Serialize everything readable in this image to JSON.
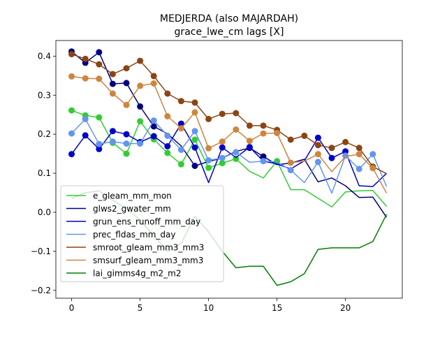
{
  "chart_data": {
    "type": "line",
    "title": "MEDJERDA (also MAJARDAH)",
    "subtitle": "grace_lwe_cm lags [X]",
    "xlabel": "",
    "ylabel": "",
    "xlim": [
      -1.15,
      24.15
    ],
    "ylim": [
      -0.22,
      0.44
    ],
    "xticks": [
      0,
      5,
      10,
      15,
      20
    ],
    "yticks": [
      -0.2,
      -0.1,
      0.0,
      0.1,
      0.2,
      0.3,
      0.4
    ],
    "xtick_labels": [
      "0",
      "5",
      "10",
      "15",
      "20"
    ],
    "ytick_labels": [
      "−0.2",
      "−0.1",
      "0.0",
      "0.1",
      "0.2",
      "0.3",
      "0.4"
    ],
    "grid": false,
    "legend_position": "lower-left",
    "x": [
      0,
      1,
      2,
      3,
      4,
      5,
      6,
      7,
      8,
      9,
      10,
      11,
      12,
      13,
      14,
      15,
      16,
      17,
      18,
      19,
      20,
      21,
      22,
      23
    ],
    "series": [
      {
        "name": "e_gleam_mm_mon",
        "color": "#32cd32",
        "values": [
          0.261,
          0.248,
          0.243,
          0.178,
          0.15,
          0.233,
          0.187,
          0.152,
          0.123,
          0.186,
          0.114,
          0.126,
          0.137,
          0.105,
          0.088,
          0.131,
          0.058,
          0.058,
          0.036,
          0.014,
          0.052,
          0.055,
          0.056,
          0.015
        ],
        "markers": [
          true,
          true,
          true,
          true,
          true,
          true,
          true,
          true,
          true,
          true,
          true,
          true,
          true,
          false,
          false,
          true,
          false,
          false,
          false,
          false,
          false,
          false,
          false,
          false
        ]
      },
      {
        "name": "glws2_gwater_mm",
        "color": "#000080",
        "values": [
          0.412,
          0.383,
          0.41,
          0.329,
          0.331,
          0.271,
          0.22,
          0.201,
          0.17,
          0.119,
          0.13,
          0.139,
          0.156,
          0.165,
          0.143,
          0.122,
          0.126,
          0.136,
          0.078,
          0.088,
          0.068,
          0.038,
          0.039,
          -0.013
        ],
        "markers": [
          true,
          true,
          true,
          true,
          true,
          true,
          true,
          false,
          false,
          true,
          false,
          false,
          false,
          true,
          true,
          false,
          false,
          false,
          false,
          false,
          false,
          false,
          false,
          false
        ]
      },
      {
        "name": "grun_ens_runoff_mm_day",
        "color": "#0000cd",
        "values": [
          0.149,
          0.197,
          0.162,
          0.208,
          0.2,
          0.18,
          0.195,
          0.169,
          0.227,
          0.166,
          0.076,
          0.166,
          0.14,
          0.167,
          0.131,
          0.124,
          0.111,
          0.132,
          0.191,
          0.139,
          0.156,
          0.068,
          0.066,
          0.1
        ],
        "markers": [
          true,
          true,
          true,
          true,
          true,
          true,
          true,
          true,
          true,
          true,
          false,
          true,
          false,
          true,
          false,
          false,
          false,
          false,
          true,
          true,
          true,
          false,
          false,
          false
        ]
      },
      {
        "name": "prec_fldas_mm_day",
        "color": "#6495ed",
        "values": [
          0.202,
          0.239,
          0.175,
          0.181,
          0.176,
          0.176,
          0.235,
          0.196,
          0.16,
          0.208,
          0.133,
          0.139,
          0.154,
          0.128,
          0.131,
          0.129,
          0.108,
          0.076,
          0.129,
          0.049,
          0.145,
          0.111,
          0.149,
          0.066
        ],
        "markers": [
          true,
          true,
          true,
          true,
          true,
          true,
          true,
          true,
          true,
          true,
          true,
          true,
          true,
          false,
          true,
          false,
          true,
          false,
          true,
          false,
          true,
          true,
          true,
          false
        ]
      },
      {
        "name": "smroot_gleam_mm3_mm3",
        "color": "#8b4513",
        "values": [
          0.405,
          0.393,
          0.379,
          0.354,
          0.369,
          0.388,
          0.349,
          0.304,
          0.285,
          0.281,
          0.239,
          0.252,
          0.254,
          0.222,
          0.222,
          0.211,
          0.186,
          0.196,
          0.172,
          0.165,
          0.18,
          0.165,
          0.117,
          0.099
        ],
        "markers": [
          true,
          true,
          true,
          true,
          true,
          true,
          true,
          true,
          true,
          true,
          true,
          true,
          true,
          true,
          true,
          true,
          true,
          true,
          true,
          true,
          true,
          true,
          true,
          false
        ]
      },
      {
        "name": "smsurf_gleam_mm3_mm3",
        "color": "#cd853f",
        "values": [
          0.348,
          0.343,
          0.342,
          0.304,
          0.275,
          0.324,
          0.33,
          0.246,
          0.215,
          0.256,
          0.164,
          0.181,
          0.212,
          0.183,
          0.202,
          0.203,
          0.127,
          0.131,
          0.149,
          0.104,
          0.143,
          0.149,
          0.113,
          0.049
        ],
        "markers": [
          true,
          true,
          true,
          true,
          true,
          true,
          true,
          true,
          true,
          true,
          true,
          true,
          true,
          true,
          true,
          true,
          true,
          false,
          true,
          false,
          false,
          true,
          true,
          false
        ]
      },
      {
        "name": "lai_gimms4g_m2_m2",
        "color": "#008000",
        "values": [
          0.035,
          0.05,
          0.055,
          0.03,
          0.01,
          -0.02,
          -0.06,
          -0.1,
          -0.08,
          -0.01,
          -0.05,
          -0.1,
          -0.142,
          -0.138,
          -0.138,
          -0.187,
          -0.178,
          -0.157,
          -0.095,
          -0.091,
          -0.091,
          -0.091,
          -0.075,
          -0.005
        ],
        "markers": [
          false,
          false,
          false,
          false,
          false,
          false,
          false,
          false,
          false,
          false,
          false,
          false,
          false,
          false,
          false,
          false,
          false,
          false,
          false,
          false,
          false,
          false,
          false,
          false
        ]
      }
    ]
  }
}
